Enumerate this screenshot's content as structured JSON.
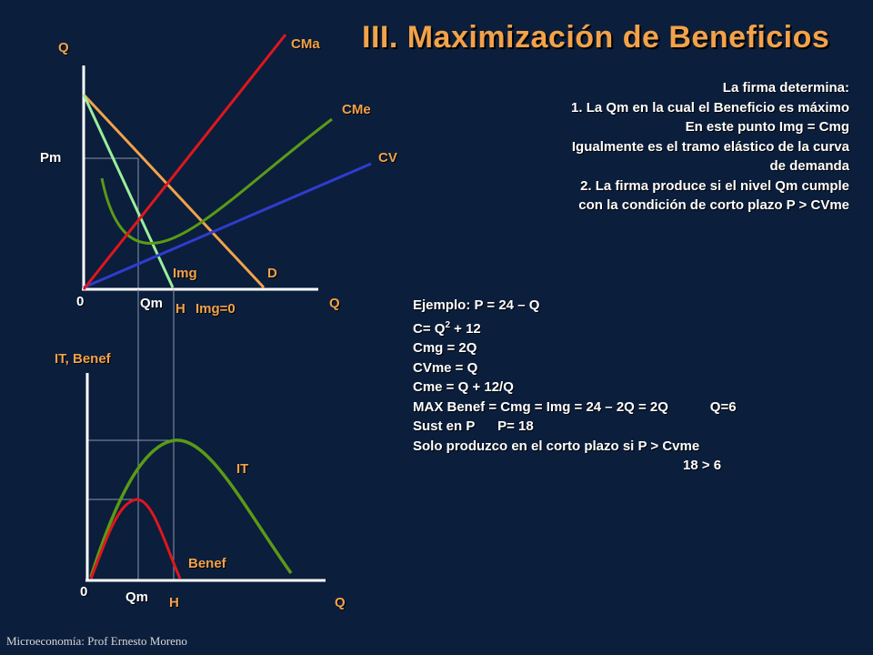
{
  "title": "III.  Maximización de Beneficios",
  "top_graph": {
    "y_axis": "Q",
    "x_axis": "Q",
    "origin": "0",
    "price_label": "Pm",
    "qm_label": "Qm",
    "h_label": "H",
    "img_zero_label": "Img=0",
    "curves": {
      "cma": "CMa",
      "cme": "CMe",
      "cv": "CV",
      "img": "Img",
      "d": "D"
    }
  },
  "bottom_graph": {
    "y_axis": "IT, Benef",
    "x_axis": "Q",
    "origin": "0",
    "qm_label": "Qm",
    "h_label": "H",
    "curves": {
      "it": "IT",
      "benef": "Benef"
    }
  },
  "explanation": [
    "La firma determina:",
    "1.      La Qm en la cual el Beneficio es máximo",
    "En este punto Img = Cmg",
    "Igualmente es el tramo elástico de la curva",
    "de demanda",
    "2.      La firma produce si el nivel Qm cumple",
    "con la condición de corto plazo P > CVme"
  ],
  "example": {
    "line1": "Ejemplo:   P = 24 – Q",
    "line2_prefix": "C= Q",
    "line2_sup": "2",
    "line2_suffix": " + 12",
    "line3": "Cmg = 2Q",
    "line4": "CVme = Q",
    "line5": "Cme = Q + 12/Q",
    "line6": "MAX Benef = Cmg = Img = 24 – 2Q = 2Q           Q=6",
    "line7": "Sust en P      P= 18",
    "line8": "Solo produzco en el corto plazo  si P > Cvme",
    "line9": "18 > 6"
  },
  "footer": "Microeconomía:  Prof Ernesto Moreno",
  "colors": {
    "background": "#0b1e3c",
    "title": "#f2a24a",
    "cma": "#e0161c",
    "demand": "#f2a24a",
    "img": "#9aee9a",
    "cme": "#5a9a16",
    "cv": "#2f3ccc",
    "axes": "#ffffff"
  }
}
